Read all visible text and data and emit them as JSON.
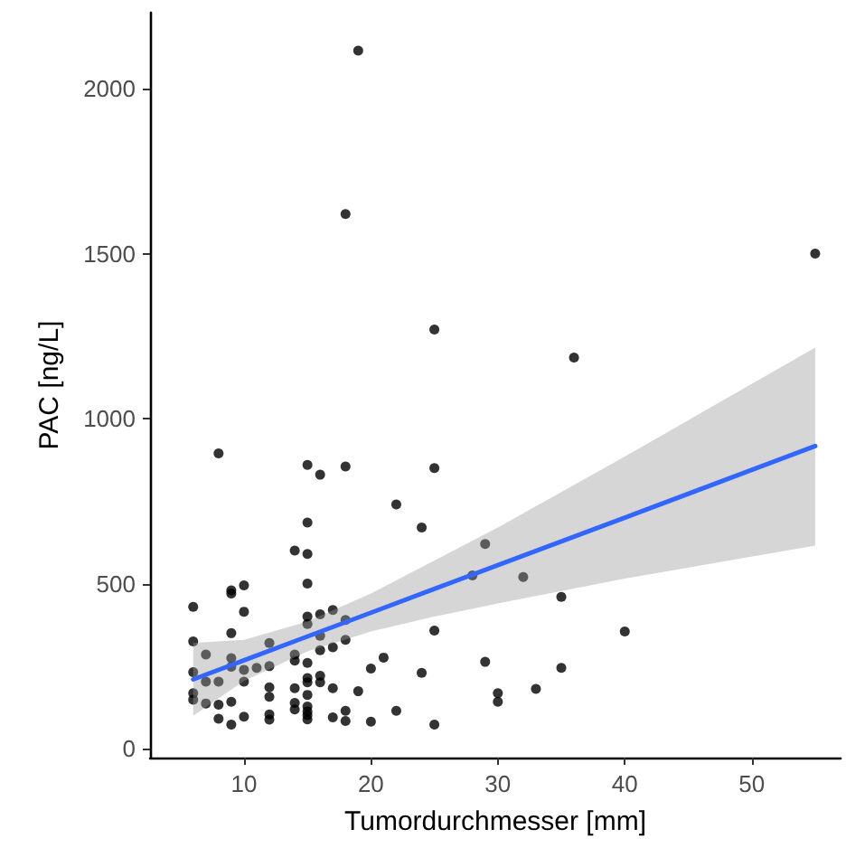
{
  "chart_data": {
    "type": "scatter",
    "xlabel": "Tumordurchmesser [mm]",
    "ylabel": "PAC [ng/L]",
    "xlim": [
      2.6,
      57
    ],
    "xticks": [
      10,
      20,
      30,
      40,
      50
    ],
    "ylim": [
      -27,
      2230
    ],
    "yticks": [
      0,
      500,
      1000,
      1500,
      2000
    ],
    "grid": false,
    "tick_labels": "xy",
    "series": [
      {
        "color": "#000000",
        "marker": "circle",
        "x": [
          19,
          18,
          55,
          25,
          36,
          8,
          15,
          16,
          18,
          25,
          22,
          24,
          15,
          14,
          15,
          29,
          15,
          10,
          9,
          9,
          6,
          10,
          32,
          28,
          35,
          40,
          9,
          6,
          7,
          12,
          15,
          16,
          17,
          18,
          15,
          16,
          17,
          18,
          16,
          14,
          14,
          9,
          15,
          12,
          10,
          11,
          9,
          6,
          7,
          8,
          10,
          25,
          21,
          20,
          24,
          29,
          35,
          33,
          30,
          30,
          19,
          17,
          16,
          16,
          15,
          15,
          15,
          14,
          12,
          12,
          6,
          6,
          7,
          8,
          9,
          8,
          9,
          10,
          12,
          12,
          14,
          14,
          15,
          15,
          15,
          15,
          17,
          18,
          18,
          20,
          22,
          25
        ],
        "values": [
          2115,
          1620,
          1500,
          1270,
          1185,
          895,
          860,
          830,
          855,
          850,
          740,
          670,
          685,
          600,
          590,
          620,
          500,
          495,
          480,
          470,
          430,
          415,
          520,
          525,
          460,
          355,
          350,
          325,
          285,
          320,
          400,
          407,
          420,
          390,
          378,
          342,
          307,
          330,
          298,
          285,
          267,
          274,
          260,
          250,
          239,
          245,
          248,
          232,
          203,
          203,
          203,
          358,
          276,
          243,
          230,
          263,
          245,
          181,
          168,
          142,
          174,
          183,
          201,
          221,
          214,
          201,
          163,
          183,
          186,
          157,
          168,
          148,
          137,
          133,
          142,
          91,
          73,
          97,
          104,
          88,
          139,
          119,
          128,
          113,
          102,
          89,
          95,
          115,
          84,
          82,
          115,
          73
        ]
      },
      {
        "type": "line",
        "color": "#3366ff",
        "marker": "none",
        "line_style": "solid",
        "x": [
          6,
          10,
          15,
          20,
          25,
          30,
          40,
          55
        ],
        "values": [
          210,
          268,
          340,
          412,
          484,
          556,
          700,
          917
        ],
        "lower": [
          100,
          205,
          295,
          355,
          400,
          440,
          515,
          615
        ],
        "upper": [
          320,
          330,
          385,
          470,
          570,
          670,
          885,
          1215
        ]
      }
    ]
  }
}
